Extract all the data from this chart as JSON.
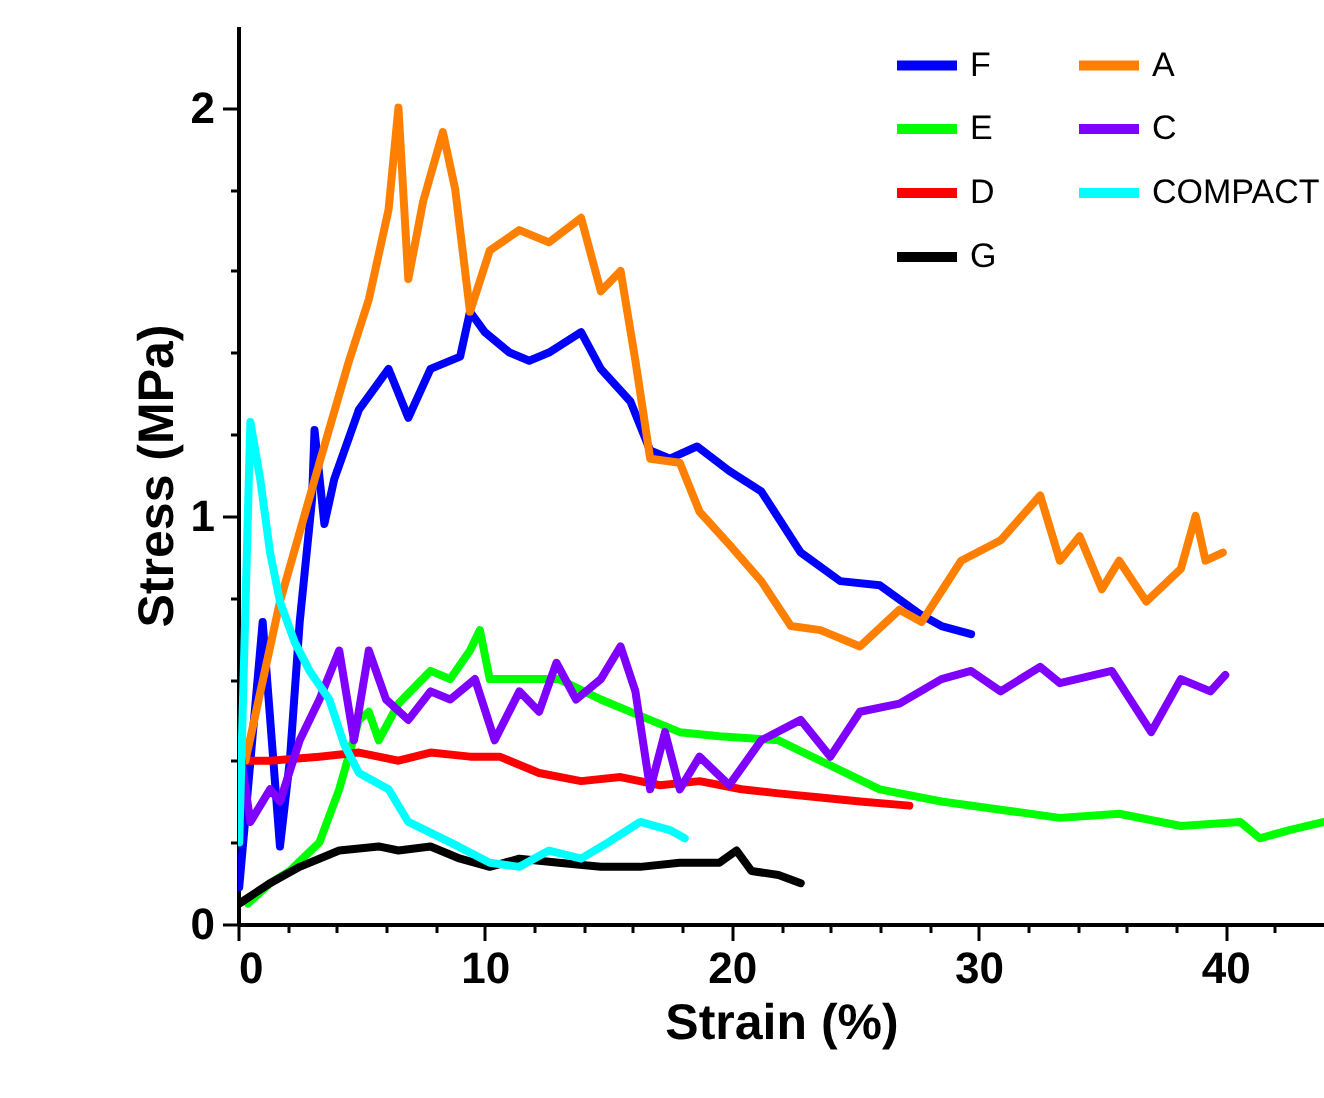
{
  "chart_data": {
    "type": "line",
    "xlabel": "Strain (%)",
    "ylabel": "Stress (MPa)",
    "xlim": [
      0,
      44
    ],
    "ylim": [
      0,
      2.2
    ],
    "xticks": [
      0,
      {
        "value": 2,
        "label": null
      },
      {
        "value": 4,
        "label": null
      },
      {
        "value": 6,
        "label": null
      },
      {
        "value": 8,
        "label": null
      },
      10,
      {
        "value": 12,
        "label": null
      },
      {
        "value": 14,
        "label": null
      },
      {
        "value": 16,
        "label": null
      },
      {
        "value": 18,
        "label": null
      },
      20,
      {
        "value": 22,
        "label": null
      },
      {
        "value": 24,
        "label": null
      },
      {
        "value": 26,
        "label": null
      },
      {
        "value": 28,
        "label": null
      },
      30,
      {
        "value": 32,
        "label": null
      },
      {
        "value": 34,
        "label": null
      },
      {
        "value": 36,
        "label": null
      },
      {
        "value": 38,
        "label": null
      },
      40,
      {
        "value": 42,
        "label": null
      }
    ],
    "yticks": [
      0,
      {
        "value": 0.2,
        "label": null
      },
      {
        "value": 0.4,
        "label": null
      },
      {
        "value": 0.6,
        "label": null
      },
      {
        "value": 0.8,
        "label": null
      },
      1,
      {
        "value": 1.2,
        "label": null
      },
      {
        "value": 1.4,
        "label": null
      },
      {
        "value": 1.6,
        "label": null
      },
      {
        "value": 1.8,
        "label": null
      },
      2
    ],
    "legend": "top right",
    "grid": false,
    "series": [
      {
        "name": "F",
        "color": "#0000ff",
        "x": [
          0.05,
          1.0,
          1.7,
          2.1,
          2.5,
          3.0,
          3.1,
          3.5,
          3.9,
          4.9,
          6.1,
          6.9,
          7.8,
          9.0,
          9.4,
          10.0,
          11.0,
          11.8,
          12.6,
          13.9,
          14.7,
          15.9,
          16.7,
          17.5,
          18.6,
          19.9,
          21.2,
          22.8,
          24.4,
          26.0,
          27.6,
          28.5,
          29.7
        ],
        "values": [
          0.09,
          0.74,
          0.19,
          0.4,
          0.74,
          1.04,
          1.21,
          0.98,
          1.09,
          1.26,
          1.36,
          1.24,
          1.36,
          1.39,
          1.5,
          1.45,
          1.4,
          1.38,
          1.4,
          1.45,
          1.36,
          1.28,
          1.16,
          1.14,
          1.17,
          1.11,
          1.06,
          0.91,
          0.84,
          0.83,
          0.76,
          0.73,
          0.71
        ]
      },
      {
        "name": "E",
        "color": "#00ff00",
        "x": [
          0.4,
          1.3,
          2.1,
          3.3,
          4.1,
          4.9,
          5.3,
          5.7,
          6.5,
          7.8,
          8.6,
          9.4,
          9.8,
          10.2,
          11.4,
          13.0,
          14.7,
          16.3,
          17.9,
          19.5,
          21.9,
          23.6,
          26.0,
          28.5,
          30.9,
          33.3,
          35.7,
          38.2,
          40.6,
          41.4,
          42.6,
          44.0
        ],
        "values": [
          0.05,
          0.1,
          0.13,
          0.2,
          0.33,
          0.5,
          0.52,
          0.45,
          0.54,
          0.62,
          0.6,
          0.67,
          0.72,
          0.6,
          0.6,
          0.6,
          0.55,
          0.51,
          0.47,
          0.46,
          0.45,
          0.4,
          0.33,
          0.3,
          0.28,
          0.26,
          0.27,
          0.24,
          0.25,
          0.21,
          0.23,
          0.25
        ]
      },
      {
        "name": "D",
        "color": "#ff0000",
        "x": [
          0.1,
          1.3,
          3.3,
          4.9,
          6.5,
          7.8,
          9.4,
          10.6,
          12.2,
          13.9,
          15.5,
          17.1,
          18.7,
          20.4,
          21.9,
          23.6,
          25.2,
          27.2
        ],
        "values": [
          0.4,
          0.4,
          0.41,
          0.42,
          0.4,
          0.42,
          0.41,
          0.41,
          0.37,
          0.35,
          0.36,
          0.34,
          0.35,
          0.33,
          0.32,
          0.31,
          0.3,
          0.29
        ]
      },
      {
        "name": "G",
        "color": "#000000",
        "x": [
          0.05,
          1.3,
          2.5,
          4.1,
          5.7,
          6.5,
          7.8,
          9.0,
          10.2,
          11.4,
          13.0,
          14.7,
          16.3,
          17.9,
          19.5,
          20.2,
          20.8,
          21.9,
          22.8
        ],
        "values": [
          0.05,
          0.1,
          0.14,
          0.18,
          0.19,
          0.18,
          0.19,
          0.16,
          0.14,
          0.16,
          0.15,
          0.14,
          0.14,
          0.15,
          0.15,
          0.18,
          0.13,
          0.12,
          0.1
        ]
      },
      {
        "name": "A",
        "color": "#ff8000",
        "x": [
          0.3,
          1.7,
          3.3,
          4.5,
          5.3,
          6.1,
          6.5,
          6.9,
          7.5,
          8.3,
          8.8,
          9.4,
          10.2,
          11.4,
          12.6,
          13.9,
          14.7,
          15.5,
          16.1,
          16.7,
          17.9,
          18.7,
          19.9,
          21.2,
          22.4,
          23.6,
          25.2,
          26.8,
          27.7,
          29.3,
          30.9,
          32.5,
          33.3,
          34.1,
          35.0,
          35.7,
          36.8,
          38.2,
          38.8,
          39.2,
          39.9
        ],
        "values": [
          0.4,
          0.79,
          1.13,
          1.38,
          1.53,
          1.75,
          2.0,
          1.58,
          1.77,
          1.94,
          1.8,
          1.5,
          1.65,
          1.7,
          1.67,
          1.73,
          1.55,
          1.6,
          1.38,
          1.14,
          1.13,
          1.01,
          0.93,
          0.84,
          0.73,
          0.72,
          0.68,
          0.77,
          0.74,
          0.89,
          0.94,
          1.05,
          0.89,
          0.95,
          0.82,
          0.89,
          0.79,
          0.87,
          1.0,
          0.89,
          0.91
        ]
      },
      {
        "name": "C",
        "color": "#8000ff",
        "x": [
          0.02,
          0.1,
          0.5,
          1.3,
          1.7,
          2.5,
          3.3,
          4.1,
          4.7,
          5.3,
          6.0,
          6.9,
          7.8,
          8.6,
          9.6,
          10.4,
          11.4,
          12.2,
          12.9,
          13.7,
          14.7,
          15.5,
          16.1,
          16.7,
          17.3,
          17.9,
          18.7,
          19.9,
          21.2,
          22.8,
          24.0,
          25.2,
          26.8,
          28.5,
          29.7,
          30.9,
          32.5,
          33.3,
          35.4,
          37.0,
          38.2,
          39.4,
          40.0
        ],
        "values": [
          0.2,
          0.42,
          0.25,
          0.33,
          0.3,
          0.45,
          0.55,
          0.67,
          0.45,
          0.67,
          0.55,
          0.5,
          0.57,
          0.55,
          0.6,
          0.45,
          0.57,
          0.52,
          0.64,
          0.55,
          0.6,
          0.68,
          0.57,
          0.33,
          0.47,
          0.33,
          0.41,
          0.34,
          0.45,
          0.5,
          0.41,
          0.52,
          0.54,
          0.6,
          0.62,
          0.57,
          0.63,
          0.59,
          0.62,
          0.47,
          0.6,
          0.57,
          0.61
        ]
      },
      {
        "name": "COMPACT",
        "color": "#00ffff",
        "x": [
          0.05,
          0.5,
          0.9,
          1.3,
          1.7,
          2.3,
          2.9,
          3.7,
          4.3,
          4.9,
          6.1,
          6.9,
          8.6,
          10.2,
          11.4,
          12.6,
          13.9,
          15.0,
          16.3,
          17.5,
          18.1
        ],
        "values": [
          0.2,
          1.23,
          1.09,
          0.91,
          0.79,
          0.69,
          0.62,
          0.55,
          0.44,
          0.37,
          0.33,
          0.25,
          0.2,
          0.15,
          0.14,
          0.18,
          0.16,
          0.2,
          0.25,
          0.23,
          0.21
        ]
      }
    ]
  }
}
